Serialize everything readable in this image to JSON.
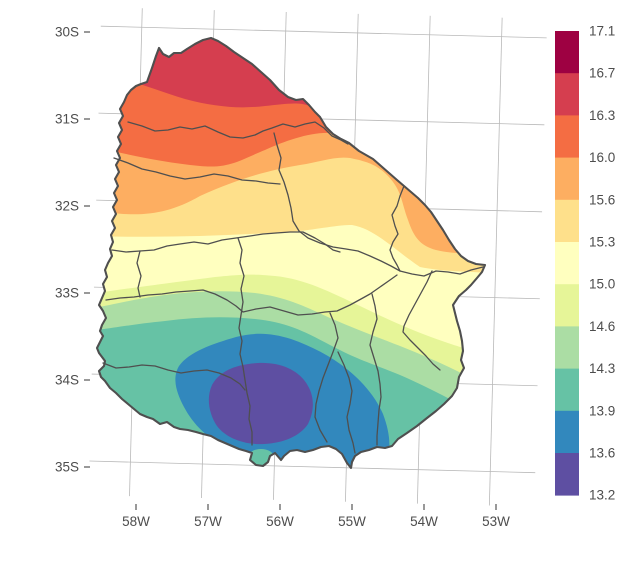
{
  "figure": {
    "kind": "filled contour map",
    "region": "Uruguay",
    "title": ""
  },
  "x_axis": {
    "ticks": [
      "58W",
      "57W",
      "56W",
      "55W",
      "54W",
      "53W"
    ]
  },
  "y_axis": {
    "ticks": [
      "30S",
      "31S",
      "32S",
      "33S",
      "34S",
      "35S"
    ]
  },
  "legend": {
    "labels": [
      "17.1",
      "16.7",
      "16.3",
      "16.0",
      "15.6",
      "15.3",
      "15.0",
      "14.6",
      "14.3",
      "13.9",
      "13.6",
      "13.2"
    ],
    "colors": [
      "#9E0142",
      "#D53E4F",
      "#F46D43",
      "#FDAE61",
      "#FEE08B",
      "#FFFFBF",
      "#E6F598",
      "#ABDDA4",
      "#66C2A5",
      "#3288BD",
      "#5E4FA2"
    ]
  },
  "style": {
    "background": "#FFFFFF",
    "gridline_color": "#B9B9B9",
    "border_color": "#4F4F4F",
    "text_color": "#4D4D4D",
    "tick_color": "#333333"
  },
  "chart_data": {
    "type": "heatmap",
    "subtype": "filled_contour_map",
    "region": "Uruguay with department boundaries",
    "title": "",
    "xlabel": "",
    "ylabel": "",
    "x_ticks": [
      "58W",
      "57W",
      "56W",
      "55W",
      "54W",
      "53W"
    ],
    "y_ticks": [
      "30S",
      "31S",
      "32S",
      "33S",
      "34S",
      "35S"
    ],
    "x_range_deg_west": [
      58.6,
      52.9
    ],
    "y_range_deg_south": [
      29.8,
      35.3
    ],
    "grid": true,
    "legend_position": "right",
    "legend_breaks": [
      17.1,
      16.7,
      16.3,
      16.0,
      15.6,
      15.3,
      15.0,
      14.6,
      14.3,
      13.9,
      13.6,
      13.2
    ],
    "palette": "Spectral reversed (high=dark red, low=purple-blue)",
    "bands": [
      {
        "range": "16.3-16.7",
        "color": "#D53E4F",
        "location": "northern tip (Artigas)"
      },
      {
        "range": "16.0-16.3",
        "color": "#F46D43",
        "location": "north band"
      },
      {
        "range": "15.6-16.0",
        "color": "#FDAE61",
        "location": "north-central band"
      },
      {
        "range": "15.3-15.6",
        "color": "#FEE08B",
        "location": "central band"
      },
      {
        "range": "15.0-15.3",
        "color": "#FFFFBF",
        "location": "central band"
      },
      {
        "range": "14.6-15.0",
        "color": "#E6F598",
        "location": "south-central band"
      },
      {
        "range": "14.3-14.6",
        "color": "#ABDDA4",
        "location": "south band"
      },
      {
        "range": "13.9-14.3",
        "color": "#66C2A5",
        "location": "south band, wraps SW and SE coast"
      },
      {
        "range": "13.6-13.9",
        "color": "#3288BD",
        "location": "southern coastal bowl"
      },
      {
        "range": "13.2-13.6",
        "color": "#5E4FA2",
        "location": "closed minimum, south-central near coast"
      }
    ],
    "observed_pattern": "Values decrease from about 16.7 at the northern tip to a closed 13.2-13.6 minimum in the south-central region near the coast; a small 13.9-14.3 pocket sits on the small southern peninsula."
  }
}
